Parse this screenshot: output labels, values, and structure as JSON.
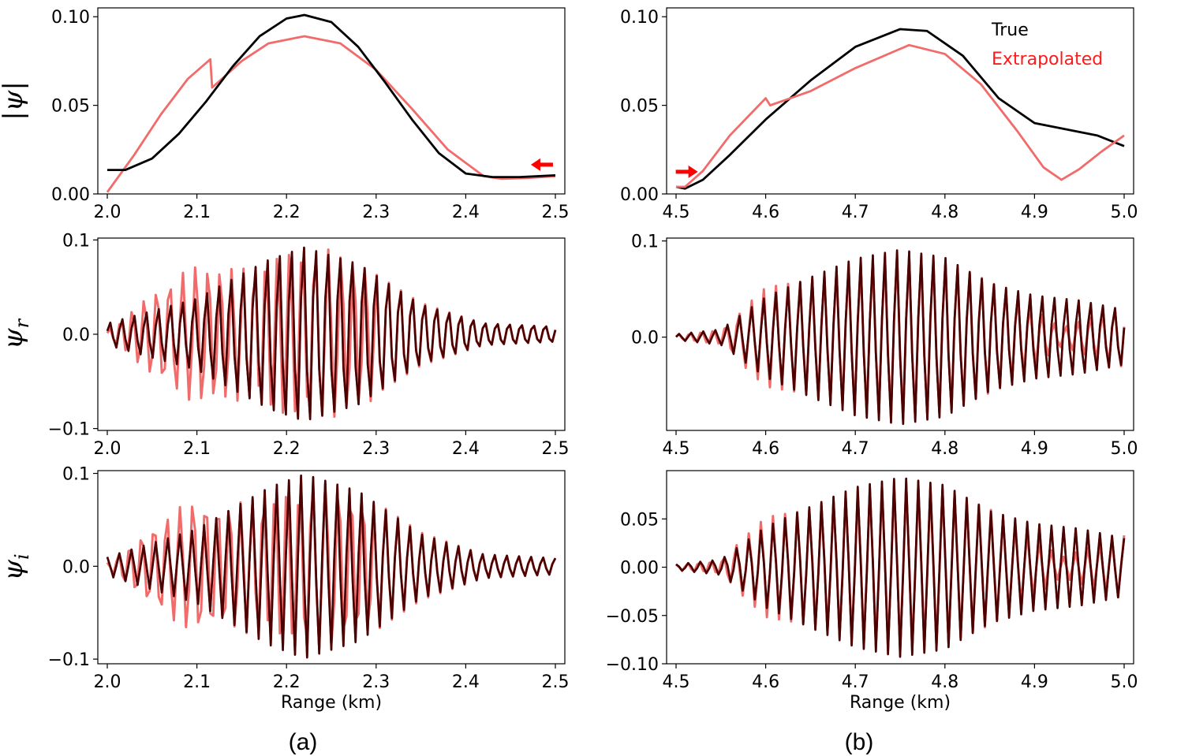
{
  "chart_data": [
    {
      "id": "a-abs",
      "type": "line",
      "column": "a",
      "ylabel": "|ψ|",
      "ylabel_parts": [
        "|",
        "ψ",
        "|"
      ],
      "xlim": [
        2.0,
        2.5
      ],
      "ylim": [
        0.0,
        0.105
      ],
      "xticks": [
        "2.0",
        "2.1",
        "2.2",
        "2.3",
        "2.4",
        "2.5"
      ],
      "yticks": [
        {
          "v": 0.0,
          "label": "0.00"
        },
        {
          "v": 0.05,
          "label": "0.05"
        },
        {
          "v": 0.1,
          "label": "0.10"
        }
      ],
      "arrow": {
        "x": 2.485,
        "y": 0.0165,
        "direction": "left",
        "color": "#ff0000"
      },
      "series": [
        {
          "name": "Extrapolated",
          "color": "#f26b6b",
          "x": [
            2.0,
            2.03,
            2.06,
            2.09,
            2.115,
            2.117,
            2.15,
            2.18,
            2.22,
            2.26,
            2.3,
            2.34,
            2.38,
            2.42,
            2.44,
            2.47,
            2.5
          ],
          "y": [
            0.001,
            0.022,
            0.045,
            0.065,
            0.076,
            0.06,
            0.075,
            0.085,
            0.089,
            0.085,
            0.07,
            0.048,
            0.025,
            0.01,
            0.0085,
            0.009,
            0.01
          ]
        },
        {
          "name": "True",
          "color": "#000000",
          "x": [
            2.0,
            2.02,
            2.05,
            2.08,
            2.11,
            2.14,
            2.17,
            2.2,
            2.22,
            2.25,
            2.28,
            2.31,
            2.34,
            2.37,
            2.4,
            2.43,
            2.46,
            2.5
          ],
          "y": [
            0.0135,
            0.0135,
            0.02,
            0.034,
            0.052,
            0.072,
            0.089,
            0.099,
            0.101,
            0.097,
            0.083,
            0.063,
            0.042,
            0.023,
            0.0115,
            0.0095,
            0.0095,
            0.0105
          ]
        }
      ]
    },
    {
      "id": "b-abs",
      "type": "line",
      "column": "b",
      "ylabel": "",
      "ylabel_parts": null,
      "xlim": [
        4.5,
        5.0
      ],
      "ylim": [
        0.0,
        0.105
      ],
      "xticks": [
        "4.5",
        "4.6",
        "4.7",
        "4.8",
        "4.9",
        "5.0"
      ],
      "yticks": [
        {
          "v": 0.0,
          "label": "0.00"
        },
        {
          "v": 0.05,
          "label": "0.05"
        },
        {
          "v": 0.1,
          "label": "0.10"
        }
      ],
      "legend": [
        "True",
        "Extrapolated"
      ],
      "arrow": {
        "x": 4.512,
        "y": 0.0125,
        "direction": "right",
        "color": "#ff0000"
      },
      "series": [
        {
          "name": "True",
          "color": "#000000",
          "x": [
            4.5,
            4.51,
            4.53,
            4.56,
            4.6,
            4.65,
            4.7,
            4.75,
            4.78,
            4.82,
            4.86,
            4.9,
            4.94,
            4.97,
            5.0
          ],
          "y": [
            0.004,
            0.003,
            0.008,
            0.022,
            0.042,
            0.064,
            0.083,
            0.093,
            0.092,
            0.078,
            0.054,
            0.04,
            0.036,
            0.033,
            0.027
          ]
        },
        {
          "name": "Extrapolated",
          "color": "#f26b6b",
          "x": [
            4.5,
            4.51,
            4.53,
            4.56,
            4.6,
            4.605,
            4.65,
            4.7,
            4.76,
            4.8,
            4.84,
            4.88,
            4.91,
            4.93,
            4.95,
            4.975,
            5.0
          ],
          "y": [
            0.004,
            0.004,
            0.013,
            0.033,
            0.054,
            0.05,
            0.058,
            0.071,
            0.084,
            0.079,
            0.062,
            0.036,
            0.015,
            0.008,
            0.014,
            0.024,
            0.033
          ]
        }
      ]
    },
    {
      "id": "a-real",
      "type": "line",
      "column": "a",
      "ylabel": "ψr",
      "ylabel_parts": [
        "ψ",
        "r"
      ],
      "xlim": [
        2.0,
        2.5
      ],
      "ylim": [
        -0.102,
        0.102
      ],
      "xticks": [
        "2.0",
        "2.1",
        "2.2",
        "2.3",
        "2.4",
        "2.5"
      ],
      "yticks": [
        {
          "v": -0.1,
          "label": "−0.1"
        },
        {
          "v": 0.0,
          "label": "0.0"
        },
        {
          "v": 0.1,
          "label": "0.1"
        }
      ],
      "osc": {
        "x0": 2.0,
        "x1": 2.5,
        "period": 0.0135,
        "phase": 0.3,
        "true_env": {
          "x": [
            2.0,
            2.1,
            2.18,
            2.22,
            2.28,
            2.35,
            2.42,
            2.5
          ],
          "y": [
            0.012,
            0.04,
            0.085,
            0.1,
            0.082,
            0.035,
            0.013,
            0.009
          ]
        },
        "extra_env": {
          "x": [
            2.0,
            2.05,
            2.1,
            2.15,
            2.2,
            2.25,
            2.3,
            2.35,
            2.42,
            2.5
          ],
          "y": [
            0.004,
            0.045,
            0.075,
            0.07,
            0.088,
            0.09,
            0.07,
            0.037,
            0.013,
            0.009
          ]
        },
        "merge_x": 2.3
      }
    },
    {
      "id": "b-real",
      "type": "line",
      "column": "b",
      "ylabel": "",
      "ylabel_parts": null,
      "xlim": [
        4.5,
        5.0
      ],
      "ylim": [
        -0.097,
        0.103
      ],
      "xticks": [
        "4.5",
        "4.6",
        "4.7",
        "4.8",
        "4.9",
        "5.0"
      ],
      "yticks": [
        {
          "v": 0.0,
          "label": "0.0"
        },
        {
          "v": 0.1,
          "label": "0.1"
        }
      ],
      "osc": {
        "x0": 4.5,
        "x1": 5.0,
        "period": 0.0135,
        "phase": 0.1,
        "true_env": {
          "x": [
            4.5,
            4.55,
            4.6,
            4.65,
            4.7,
            4.75,
            4.8,
            4.85,
            4.9,
            4.95,
            5.0
          ],
          "y": [
            0.003,
            0.008,
            0.042,
            0.063,
            0.083,
            0.093,
            0.085,
            0.058,
            0.045,
            0.04,
            0.03
          ]
        },
        "extra_env": {
          "x": [
            4.5,
            4.55,
            4.6,
            4.65,
            4.7,
            4.75,
            4.8,
            4.85,
            4.9,
            4.93,
            4.96,
            5.0
          ],
          "y": [
            0.003,
            0.008,
            0.052,
            0.06,
            0.075,
            0.084,
            0.08,
            0.06,
            0.03,
            0.01,
            0.02,
            0.033
          ]
        },
        "merge_x": 4.58
      }
    },
    {
      "id": "a-imag",
      "type": "line",
      "column": "a",
      "ylabel": "ψi",
      "ylabel_parts": [
        "ψ",
        "i"
      ],
      "xlim": [
        2.0,
        2.5
      ],
      "ylim": [
        -0.105,
        0.103
      ],
      "xticks": [
        "2.0",
        "2.1",
        "2.2",
        "2.3",
        "2.4",
        "2.5"
      ],
      "yticks": [
        {
          "v": -0.1,
          "label": "−0.1"
        },
        {
          "v": 0.0,
          "label": "0.0"
        },
        {
          "v": 0.1,
          "label": "0.1"
        }
      ],
      "osc": {
        "x0": 2.0,
        "x1": 2.5,
        "period": 0.0135,
        "phase": 1.6,
        "true_env": {
          "x": [
            2.0,
            2.1,
            2.18,
            2.22,
            2.28,
            2.35,
            2.42,
            2.5
          ],
          "y": [
            0.01,
            0.04,
            0.085,
            0.1,
            0.082,
            0.035,
            0.013,
            0.009
          ]
        },
        "extra_env": {
          "x": [
            2.0,
            2.05,
            2.1,
            2.15,
            2.2,
            2.25,
            2.3,
            2.35,
            2.42,
            2.5
          ],
          "y": [
            0.004,
            0.045,
            0.075,
            0.07,
            0.088,
            0.09,
            0.07,
            0.037,
            0.013,
            0.009
          ]
        },
        "merge_x": 2.3
      }
    },
    {
      "id": "b-imag",
      "type": "line",
      "column": "b",
      "ylabel": "",
      "ylabel_parts": null,
      "xlim": [
        4.5,
        5.0
      ],
      "ylim": [
        -0.1,
        0.1
      ],
      "xlabel": "Range (km)",
      "xticks": [
        "4.5",
        "4.6",
        "4.7",
        "4.8",
        "4.9",
        "5.0"
      ],
      "yticks": [
        {
          "v": -0.1,
          "label": "−0.10"
        },
        {
          "v": -0.05,
          "label": "−0.05"
        },
        {
          "v": 0.0,
          "label": "0.00"
        },
        {
          "v": 0.05,
          "label": "0.05"
        }
      ],
      "osc": {
        "x0": 4.5,
        "x1": 5.0,
        "period": 0.0135,
        "phase": 1.4,
        "true_env": {
          "x": [
            4.5,
            4.55,
            4.6,
            4.65,
            4.7,
            4.75,
            4.8,
            4.85,
            4.9,
            4.95,
            5.0
          ],
          "y": [
            0.003,
            0.008,
            0.042,
            0.063,
            0.083,
            0.093,
            0.085,
            0.058,
            0.045,
            0.04,
            0.03
          ]
        },
        "extra_env": {
          "x": [
            4.5,
            4.55,
            4.6,
            4.65,
            4.7,
            4.75,
            4.8,
            4.85,
            4.9,
            4.93,
            4.96,
            5.0
          ],
          "y": [
            0.003,
            0.008,
            0.052,
            0.06,
            0.075,
            0.084,
            0.08,
            0.06,
            0.03,
            0.01,
            0.02,
            0.033
          ]
        },
        "merge_x": 4.58
      }
    }
  ],
  "xlabel": "Range (km)",
  "captions": {
    "a": "(a)",
    "b": "(b)"
  },
  "colors": {
    "true": "#000000",
    "extrapolated": "#f26b6b",
    "overlap": "#8b0000",
    "arrow": "#ff0000",
    "legend_extrapolated": "#ff1a1a"
  }
}
